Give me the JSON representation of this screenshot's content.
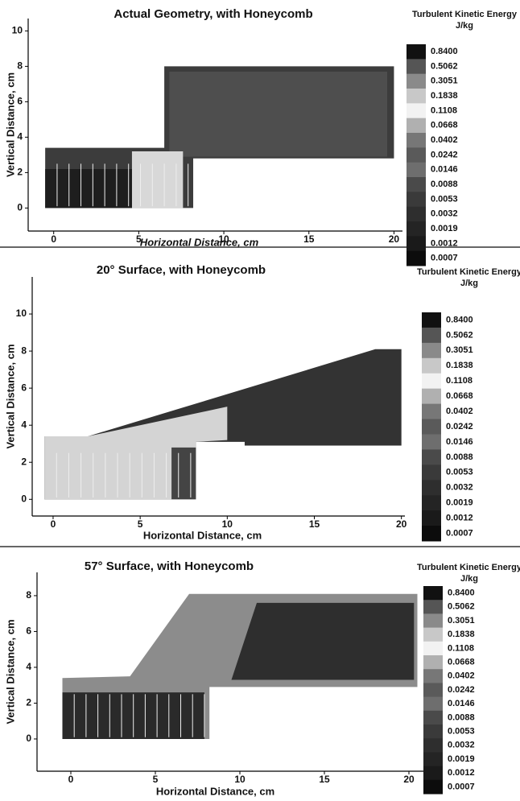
{
  "chart_data": [
    {
      "type": "contour",
      "title": "Actual Geometry, with Honeycomb",
      "xlabel": "Horizontal Distance, cm",
      "ylabel": "Vertical Distance, cm",
      "xlim": [
        -1.5,
        20.5
      ],
      "ylim": [
        -1.3,
        10.7
      ],
      "xticks": [
        0,
        5,
        10,
        15,
        20
      ],
      "yticks": [
        0,
        2,
        4,
        6,
        8,
        10
      ],
      "colorbar": {
        "title": "Turbulent Kinetic Energy",
        "unit": "J/kg",
        "levels": [
          {
            "value": 0.84,
            "label": "0.8400"
          },
          0.5062,
          0.3051,
          0.1838,
          0.1108,
          0.0668,
          0.0402,
          0.0242,
          0.0146,
          0.0088,
          0.0053,
          0.0032,
          0.0019,
          0.0012,
          0.0007
        ],
        "colors": [
          "#111111",
          "#555555",
          "#8a8a8a",
          "#c8c8c8",
          "#f2f2f2",
          "#b0b0b0",
          "#777777",
          "#5a5a5a",
          "#6e6e6e",
          "#4a4a4a",
          "#3a3a3a",
          "#2e2e2e",
          "#242424",
          "#1a1a1a",
          "#0c0c0c"
        ]
      }
    },
    {
      "type": "contour",
      "title": "20° Surface, with Honeycomb",
      "xlabel": "Horizontal Distance, cm",
      "ylabel": "Vertical Distance, cm",
      "xlim": [
        -1.2,
        20.2
      ],
      "ylim": [
        -0.9,
        12
      ],
      "xticks": [
        0,
        5,
        10,
        15,
        20
      ],
      "yticks": [
        0,
        2,
        4,
        6,
        8,
        10
      ],
      "colorbar": {
        "title": "Turbulent Kinetic Energy",
        "unit": "J/kg",
        "levels": [
          {
            "value": 0.84,
            "label": "0.8400"
          },
          0.5062,
          0.3051,
          0.1838,
          0.1108,
          0.0668,
          0.0402,
          0.0242,
          0.0146,
          0.0088,
          0.0053,
          0.0032,
          0.0019,
          0.0012,
          0.0007
        ],
        "colors": [
          "#111111",
          "#555555",
          "#8a8a8a",
          "#c8c8c8",
          "#f2f2f2",
          "#b0b0b0",
          "#777777",
          "#5a5a5a",
          "#6e6e6e",
          "#4a4a4a",
          "#3a3a3a",
          "#2e2e2e",
          "#242424",
          "#1a1a1a",
          "#0c0c0c"
        ]
      }
    },
    {
      "type": "contour",
      "title": "57° Surface, with Honeycomb",
      "xlabel": "Horizontal Distance, cm",
      "ylabel": "Vertical Distance, cm",
      "xlim": [
        -2,
        21
      ],
      "ylim": [
        -1.8,
        9.3
      ],
      "xticks": [
        0,
        5,
        10,
        15,
        20
      ],
      "yticks": [
        0,
        2,
        4,
        6,
        8
      ],
      "colorbar": {
        "title": "Turbulent Kinetic Energy",
        "unit": "J/kg",
        "levels": [
          {
            "value": 0.84,
            "label": "0.8400"
          },
          0.5062,
          0.3051,
          0.1838,
          0.1108,
          0.0668,
          0.0402,
          0.0242,
          0.0146,
          0.0088,
          0.0053,
          0.0032,
          0.0019,
          0.0012,
          0.0007
        ],
        "colors": [
          "#111111",
          "#555555",
          "#8a8a8a",
          "#c8c8c8",
          "#f2f2f2",
          "#b0b0b0",
          "#777777",
          "#5a5a5a",
          "#6e6e6e",
          "#4a4a4a",
          "#3a3a3a",
          "#2e2e2e",
          "#242424",
          "#1a1a1a",
          "#0c0c0c"
        ]
      }
    }
  ]
}
